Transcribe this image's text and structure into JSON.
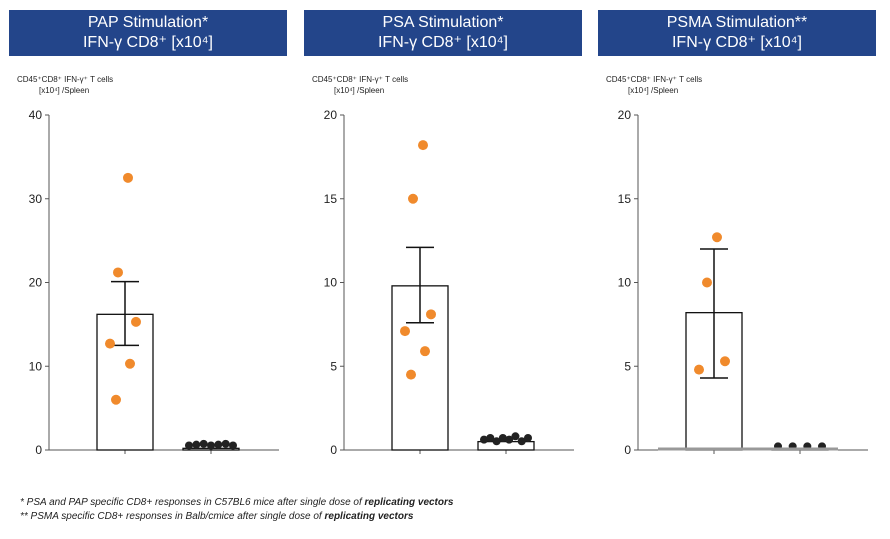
{
  "charts": [
    {
      "header_line1": "PAP Stimulation*",
      "header_line2": "IFN-γ CD8⁺ [x10⁴]",
      "ylabel_line1": "CD45⁺CD8⁺ IFN-γ⁺ T cells",
      "ylabel_line2": "[x10⁴] /Spleen"
    },
    {
      "header_line1": "PSA Stimulation*",
      "header_line2": "IFN-γ CD8⁺ [x10⁴]",
      "ylabel_line1": "CD45⁺CD8⁺ IFN-γ⁺ T cells",
      "ylabel_line2": "[x10⁴] /Spleen"
    },
    {
      "header_line1": "PSMA Stimulation**",
      "header_line2": "IFN-γ CD8⁺ [x10⁴]",
      "ylabel_line1": "CD45⁺CD8⁺ IFN-γ⁺ T cells",
      "ylabel_line2": "[x10⁴] /Spleen"
    }
  ],
  "chart_data": [
    {
      "type": "bar",
      "title": "PAP Stimulation* IFN-γ CD8⁺ [x10⁴]",
      "ylabel": "CD45⁺CD8⁺ IFN-γ⁺ T cells [x10⁴] /Spleen",
      "ylim": [
        0,
        40
      ],
      "yticks": [
        0,
        10,
        20,
        30,
        40
      ],
      "bars": [
        {
          "mean": 16.2,
          "err_low": 12.5,
          "err_high": 20.1,
          "points": [
            32.5,
            21.2,
            15.3,
            12.7,
            10.3,
            6.0
          ]
        },
        {
          "mean": 0.2,
          "points": [
            0.3,
            0.4,
            0.5,
            0.3,
            0.4,
            0.5,
            0.3
          ]
        }
      ]
    },
    {
      "type": "bar",
      "title": "PSA Stimulation* IFN-γ CD8⁺ [x10⁴]",
      "ylabel": "CD45⁺CD8⁺ IFN-γ⁺ T cells [x10⁴] /Spleen",
      "ylim": [
        0,
        20
      ],
      "yticks": [
        0,
        5,
        10,
        15,
        20
      ],
      "bars": [
        {
          "mean": 9.8,
          "err_low": 7.6,
          "err_high": 12.1,
          "points": [
            18.2,
            15.0,
            8.1,
            7.1,
            5.9,
            4.5
          ]
        },
        {
          "mean": 0.5,
          "points": [
            0.5,
            0.6,
            0.4,
            0.6,
            0.5,
            0.7,
            0.4,
            0.6
          ]
        }
      ]
    },
    {
      "type": "bar",
      "title": "PSMA Stimulation** IFN-γ CD8⁺ [x10⁴]",
      "ylabel": "CD45⁺CD8⁺ IFN-γ⁺ T cells [x10⁴] /Spleen",
      "ylim": [
        0,
        20
      ],
      "yticks": [
        0,
        5,
        10,
        15,
        20
      ],
      "bars": [
        {
          "mean": 8.2,
          "err_low": 4.3,
          "err_high": 12.0,
          "points": [
            12.7,
            10.0,
            5.3,
            4.8
          ]
        },
        {
          "mean": 0.1,
          "points": [
            0.1,
            0.1,
            0.1,
            0.1
          ]
        }
      ]
    }
  ],
  "footnotes": {
    "line1_text": "* PSA and PAP specific CD8+ responses in C57BL6 mice after single dose of ",
    "line1_bold": "replicating vectors",
    "line2_text": "** PSMA specific CD8+ responses in Balb/cmice after single dose of ",
    "line2_bold": "replicating vectors"
  },
  "colors": {
    "header_bg": "#23458a",
    "dot_stim": "#f08a2c",
    "dot_ctrl": "#222222",
    "bar_fill": "#ffffff",
    "axis": "#555555",
    "baseline_grey": "#999999"
  }
}
